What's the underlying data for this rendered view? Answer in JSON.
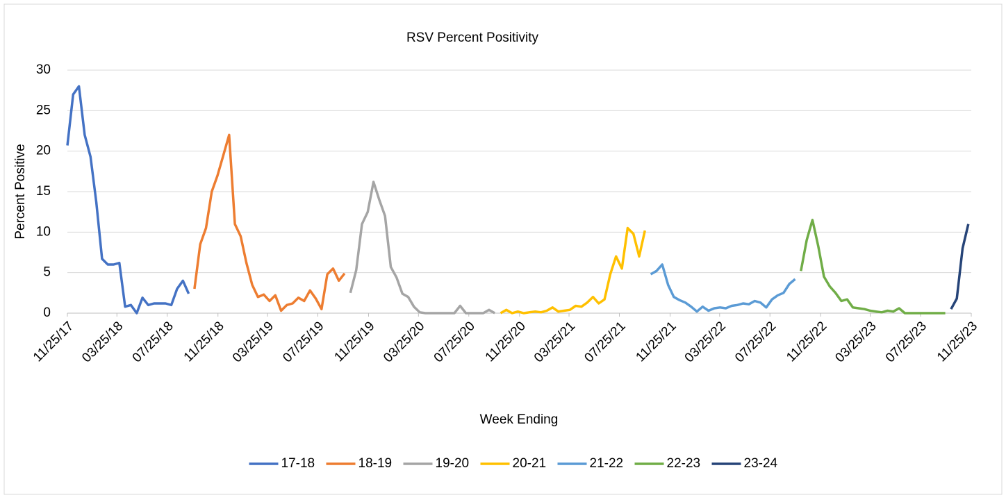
{
  "chart_data": {
    "type": "line",
    "title": "RSV Percent Positivity",
    "xlabel": "Week Ending",
    "ylabel": "Percent Positive",
    "xlim": [
      "11/25/17",
      "11/25/23"
    ],
    "xticks": [
      "11/25/17",
      "03/25/18",
      "07/25/18",
      "11/25/18",
      "03/25/19",
      "07/25/19",
      "11/25/19",
      "03/25/20",
      "07/25/20",
      "11/25/20",
      "03/25/21",
      "07/25/21",
      "11/25/21",
      "03/25/22",
      "07/25/22",
      "11/25/22",
      "03/25/23",
      "07/25/23",
      "11/25/23"
    ],
    "ylim": [
      0,
      30
    ],
    "yticks": [
      0,
      5,
      10,
      15,
      20,
      25,
      30
    ],
    "grid": true,
    "legend": "bottom",
    "series": [
      {
        "name": "17-18",
        "color": "#4472c4",
        "x": [
          "11/25/17",
          "12/09/17",
          "12/23/17",
          "01/06/18",
          "01/20/18",
          "02/03/18",
          "02/17/18",
          "03/03/18",
          "03/17/18",
          "03/31/18",
          "04/14/18",
          "04/28/18",
          "05/12/18",
          "05/26/18",
          "06/09/18",
          "06/23/18",
          "07/07/18",
          "07/21/18",
          "08/04/18",
          "08/18/18",
          "09/01/18",
          "09/15/18"
        ],
        "values": [
          20.7,
          27,
          28,
          22,
          19.3,
          13.7,
          6.7,
          6,
          6,
          6.2,
          0.8,
          1,
          0,
          1.9,
          1,
          1.2,
          1.2,
          1.2,
          1,
          3,
          4,
          2.4
        ]
      },
      {
        "name": "18-19",
        "color": "#ed7d31",
        "x": [
          "09/29/18",
          "10/13/18",
          "10/27/18",
          "11/10/18",
          "11/24/18",
          "12/08/18",
          "12/22/18",
          "01/05/19",
          "01/19/19",
          "02/02/19",
          "02/16/19",
          "03/02/19",
          "03/16/19",
          "03/30/19",
          "04/13/19",
          "04/27/19",
          "05/11/19",
          "05/25/19",
          "06/08/19",
          "06/22/19",
          "07/06/19",
          "07/20/19",
          "08/03/19",
          "08/17/19",
          "08/31/19",
          "09/14/19",
          "09/28/19"
        ],
        "values": [
          3,
          8.5,
          10.5,
          15,
          17,
          19.5,
          22,
          11,
          9.5,
          6.2,
          3.5,
          2,
          2.3,
          1.5,
          2.2,
          0.3,
          1,
          1.2,
          1.9,
          1.5,
          2.8,
          1.8,
          0.5,
          4.8,
          5.5,
          4,
          4.9
        ]
      },
      {
        "name": "19-20",
        "color": "#a5a5a5",
        "x": [
          "10/12/19",
          "10/26/19",
          "11/09/19",
          "11/23/19",
          "12/07/19",
          "12/21/19",
          "01/04/20",
          "01/18/20",
          "02/01/20",
          "02/15/20",
          "02/29/20",
          "03/14/20",
          "03/28/20",
          "04/11/20",
          "04/25/20",
          "05/09/20",
          "05/23/20",
          "06/06/20",
          "06/20/20",
          "07/04/20",
          "07/18/20",
          "08/01/20",
          "08/15/20",
          "08/29/20",
          "09/12/20",
          "09/26/20"
        ],
        "values": [
          2.5,
          5.3,
          11,
          12.5,
          16.2,
          14,
          12,
          5.7,
          4.4,
          2.4,
          2,
          0.8,
          0.1,
          0,
          0,
          0,
          0,
          0,
          0,
          0.9,
          0,
          0,
          0,
          0,
          0.4,
          0
        ]
      },
      {
        "name": "20-21",
        "color": "#ffc000",
        "x": [
          "10/10/20",
          "10/24/20",
          "11/07/20",
          "11/21/20",
          "12/05/20",
          "12/19/20",
          "01/02/21",
          "01/16/21",
          "01/30/21",
          "02/13/21",
          "02/27/21",
          "03/13/21",
          "03/27/21",
          "04/10/21",
          "04/24/21",
          "05/08/21",
          "05/22/21",
          "06/05/21",
          "06/19/21",
          "07/03/21",
          "07/17/21",
          "07/31/21",
          "08/14/21",
          "08/28/21",
          "09/11/21",
          "09/25/21"
        ],
        "values": [
          0,
          0.4,
          0,
          0.2,
          0,
          0.1,
          0.2,
          0.1,
          0.3,
          0.7,
          0.2,
          0.3,
          0.4,
          0.9,
          0.8,
          1.3,
          2,
          1.2,
          1.7,
          4.8,
          7,
          5.5,
          10.5,
          9.8,
          7,
          10.2
        ]
      },
      {
        "name": "21-22",
        "color": "#5b9bd5",
        "x": [
          "10/09/21",
          "10/23/21",
          "11/06/21",
          "11/20/21",
          "12/04/21",
          "12/18/21",
          "01/01/22",
          "01/15/22",
          "01/29/22",
          "02/12/22",
          "02/26/22",
          "03/12/22",
          "03/26/22",
          "04/09/22",
          "04/23/22",
          "05/07/22",
          "05/21/22",
          "06/04/22",
          "06/18/22",
          "07/02/22",
          "07/16/22",
          "07/30/22",
          "08/13/22",
          "08/27/22",
          "09/10/22",
          "09/24/22"
        ],
        "values": [
          4.8,
          5.2,
          6,
          3.5,
          2,
          1.6,
          1.3,
          0.8,
          0.2,
          0.8,
          0.3,
          0.6,
          0.7,
          0.6,
          0.9,
          1,
          1.2,
          1.1,
          1.5,
          1.3,
          0.7,
          1.7,
          2.2,
          2.5,
          3.6,
          4.2
        ]
      },
      {
        "name": "22-23",
        "color": "#70ad47",
        "x": [
          "10/08/22",
          "10/22/22",
          "11/05/22",
          "11/19/22",
          "12/03/22",
          "12/17/22",
          "12/31/22",
          "01/14/23",
          "01/28/23",
          "02/11/23",
          "02/25/23",
          "03/11/23",
          "03/25/23",
          "04/08/23",
          "04/22/23",
          "05/06/23",
          "05/20/23",
          "06/03/23",
          "06/17/23",
          "07/01/23",
          "07/15/23",
          "07/29/23",
          "08/12/23",
          "08/26/23",
          "09/09/23",
          "09/23/23"
        ],
        "values": [
          5.2,
          9,
          11.5,
          8.3,
          4.5,
          3.3,
          2.5,
          1.5,
          1.7,
          0.7,
          0.6,
          0.5,
          0.3,
          0.2,
          0.1,
          0.3,
          0.2,
          0.6,
          0,
          0,
          0,
          0,
          0,
          0,
          0,
          0
        ]
      },
      {
        "name": "23-24",
        "color": "#264478",
        "x": [
          "10/07/23",
          "10/21/23",
          "11/04/23",
          "11/18/23"
        ],
        "values": [
          0.5,
          1.8,
          8,
          11
        ]
      }
    ]
  }
}
